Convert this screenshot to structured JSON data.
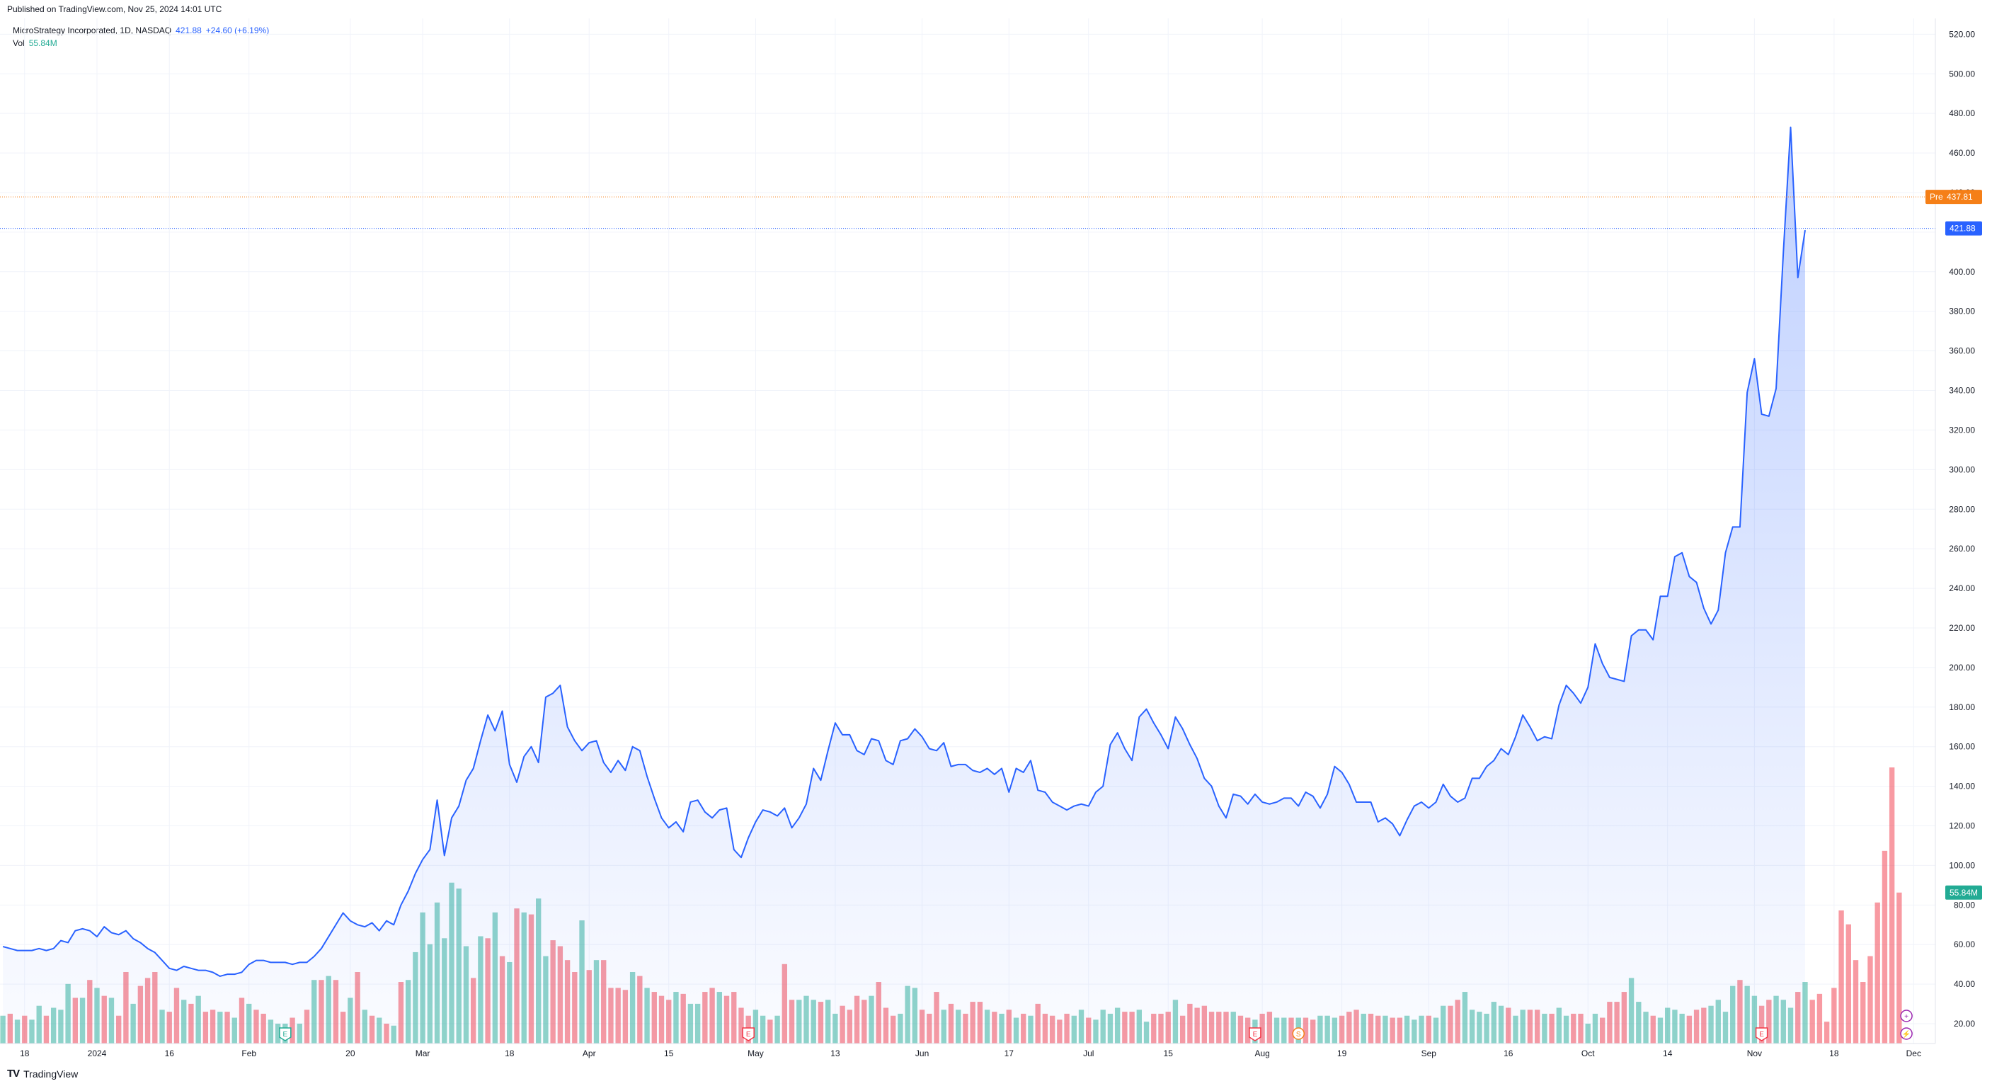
{
  "header": {
    "published_text": "Published on TradingView.com, Nov 25, 2024 14:01 UTC"
  },
  "legend": {
    "symbol": "MicroStrategy Incorporated, 1D, NASDAQ",
    "last_price": "421.88",
    "change": "+24.60 (+6.19%)",
    "volume_label": "Vol",
    "volume_value": "55.84M"
  },
  "price_tags": {
    "pre_label": "Pre",
    "pre_price": "437.81",
    "last_price": "421.88",
    "volume": "55.84M"
  },
  "footer": {
    "brand": "TradingView",
    "logo": "tradingview-logo-icon"
  },
  "colors": {
    "line": "#2962ff",
    "area_top": "#2962ff",
    "up_volume": "#22ab94",
    "down_volume": "#f23645",
    "pre_tag": "#f57f17",
    "last_tag": "#2962ff",
    "vol_tag": "#22ab94"
  },
  "chart_data": {
    "type": "area",
    "title": "",
    "xlabel": "",
    "ylabel": "",
    "ylim": [
      10,
      528
    ],
    "y_ticks": [
      "20.00",
      "40.00",
      "60.00",
      "80.00",
      "100.00",
      "120.00",
      "140.00",
      "160.00",
      "180.00",
      "200.00",
      "220.00",
      "240.00",
      "260.00",
      "280.00",
      "300.00",
      "320.00",
      "340.00",
      "360.00",
      "380.00",
      "400.00",
      "420.00",
      "440.00",
      "460.00",
      "480.00",
      "500.00",
      "520.00"
    ],
    "x_ticks": [
      "18",
      "2024",
      "16",
      "Feb",
      "20",
      "Mar",
      "18",
      "Apr",
      "15",
      "May",
      "13",
      "Jun",
      "17",
      "Jul",
      "15",
      "Aug",
      "19",
      "Sep",
      "16",
      "Oct",
      "14",
      "Nov",
      "18",
      "Dec"
    ],
    "x_tick_bars": [
      3,
      13,
      23,
      34,
      48,
      58,
      70,
      81,
      92,
      104,
      115,
      127,
      139,
      150,
      161,
      174,
      185,
      197,
      208,
      219,
      230,
      242,
      253,
      264
    ],
    "x_bar_range": [
      -0.4,
      267
    ],
    "series": [
      {
        "kind": "close",
        "values": [
          59,
          58,
          57,
          57,
          57,
          58,
          57,
          58,
          62,
          61,
          67,
          68,
          67,
          64,
          69,
          66,
          65,
          67,
          63,
          61,
          58,
          56,
          52,
          48,
          47,
          49,
          48,
          47,
          47,
          46,
          44,
          45,
          45,
          46,
          50,
          52,
          52,
          51,
          51,
          51,
          50,
          51,
          51,
          54,
          58,
          64,
          70,
          76,
          72,
          70,
          69,
          71,
          67,
          72,
          70,
          80,
          87,
          96,
          103,
          108,
          133,
          105,
          124,
          130,
          143,
          149,
          163,
          176,
          168,
          178,
          151,
          142,
          155,
          160,
          152,
          185,
          187,
          191,
          170,
          163,
          158,
          162,
          163,
          152,
          147,
          153,
          148,
          160,
          158,
          145,
          134,
          124,
          119,
          122,
          117,
          132,
          133,
          127,
          124,
          128,
          129,
          108,
          104,
          114,
          122,
          128,
          127,
          125,
          129,
          119,
          124,
          131,
          149,
          143,
          158,
          172,
          166,
          166,
          158,
          156,
          164,
          163,
          153,
          151,
          163,
          164,
          169,
          165,
          159,
          158,
          162,
          150,
          151,
          151,
          148,
          147,
          149,
          146,
          149,
          137,
          149,
          147,
          153,
          138,
          137,
          132,
          130,
          128,
          130,
          131,
          130,
          137,
          140,
          161,
          167,
          159,
          153,
          175,
          179,
          172,
          166,
          159,
          175,
          169,
          161,
          154,
          144,
          140,
          130,
          124,
          136,
          135,
          131,
          136,
          132,
          131,
          132,
          134,
          134,
          130,
          137,
          135,
          129,
          136,
          150,
          147,
          141,
          132,
          132,
          132,
          122,
          124,
          121,
          115,
          123,
          130,
          132,
          129,
          132,
          141,
          135,
          132,
          134,
          144,
          144,
          150,
          153,
          159,
          156,
          165,
          176,
          170,
          163,
          165,
          164,
          181,
          191,
          187,
          182,
          190,
          212,
          202,
          195,
          194,
          193,
          216,
          219,
          219,
          214,
          236,
          236,
          256,
          258,
          246,
          243,
          230,
          222,
          229,
          258,
          271,
          271,
          339,
          356,
          328,
          327,
          341,
          410,
          473,
          397,
          421
        ]
      },
      {
        "kind": "volume",
        "values": [
          14,
          15,
          12,
          14,
          12,
          19,
          14,
          18,
          17,
          30,
          23,
          23,
          32,
          28,
          24,
          23,
          14,
          36,
          20,
          29,
          33,
          36,
          17,
          16,
          28,
          22,
          20,
          24,
          16,
          17,
          16,
          16,
          13,
          23,
          20,
          17,
          15,
          12,
          10,
          10,
          13,
          10,
          17,
          32,
          32,
          34,
          32,
          16,
          23,
          36,
          17,
          14,
          13,
          10,
          9,
          31,
          32,
          46,
          66,
          50,
          71,
          53,
          81,
          78,
          49,
          33,
          54,
          53,
          66,
          44,
          41,
          68,
          66,
          65,
          73,
          44,
          52,
          49,
          42,
          36,
          62,
          37,
          42,
          42,
          28,
          28,
          27,
          36,
          34,
          28,
          26,
          24,
          22,
          26,
          25,
          20,
          20,
          26,
          28,
          26,
          24,
          26,
          18,
          14,
          17,
          14,
          12,
          14,
          40,
          22,
          22,
          24,
          22,
          21,
          22,
          15,
          19,
          17,
          24,
          22,
          24,
          31,
          18,
          14,
          15,
          29,
          28,
          17,
          15,
          26,
          17,
          20,
          17,
          15,
          21,
          21,
          17,
          16,
          15,
          17,
          13,
          15,
          14,
          20,
          15,
          14,
          12,
          15,
          14,
          17,
          13,
          12,
          17,
          15,
          18,
          16,
          16,
          17,
          11,
          15,
          15,
          16,
          22,
          14,
          20,
          18,
          19,
          16,
          16,
          16,
          16,
          14,
          13,
          12,
          15,
          16,
          13,
          13,
          13,
          13,
          13,
          12,
          14,
          14,
          13,
          14,
          16,
          17,
          15,
          15,
          14,
          14,
          13,
          13,
          14,
          12,
          14,
          14,
          13,
          19,
          19,
          22,
          26,
          17,
          16,
          15,
          21,
          19,
          18,
          14,
          17,
          17,
          17,
          15,
          15,
          18,
          14,
          15,
          15,
          10,
          15,
          13,
          21,
          21,
          26,
          33,
          21,
          16,
          14,
          13,
          18,
          17,
          15,
          14,
          17,
          18,
          19,
          22,
          16,
          29,
          32,
          29,
          24,
          19,
          22,
          24,
          22,
          18,
          26,
          31,
          22,
          25,
          11,
          28,
          67,
          60,
          42,
          31,
          44,
          71,
          97,
          139,
          76
        ],
        "up": [
          1,
          0,
          1,
          0,
          1,
          1,
          0,
          1,
          1,
          1,
          0,
          1,
          0,
          1,
          0,
          1,
          0,
          0,
          1,
          0,
          0,
          0,
          1,
          0,
          0,
          1,
          0,
          1,
          0,
          0,
          1,
          0,
          1,
          0,
          1,
          0,
          0,
          1,
          1,
          1,
          0,
          1,
          0,
          1,
          0,
          1,
          0,
          0,
          1,
          0,
          1,
          0,
          1,
          0,
          1,
          0,
          1,
          1,
          1,
          1,
          1,
          1,
          1,
          1,
          1,
          0,
          1,
          0,
          1,
          0,
          1,
          0,
          1,
          0,
          1,
          1,
          0,
          0,
          0,
          0,
          1,
          0,
          1,
          0,
          0,
          0,
          0,
          1,
          0,
          1,
          0,
          0,
          0,
          1,
          0,
          1,
          1,
          0,
          0,
          1,
          0,
          0,
          0,
          0,
          1,
          1,
          0,
          1,
          0,
          0,
          1,
          1,
          1,
          0,
          1,
          1,
          0,
          0,
          0,
          0,
          1,
          0,
          0,
          0,
          1,
          1,
          1,
          0,
          0,
          0,
          1,
          0,
          1,
          0,
          0,
          0,
          1,
          0,
          1,
          0,
          1,
          0,
          1,
          0,
          0,
          0,
          0,
          0,
          1,
          1,
          0,
          1,
          1,
          1,
          1,
          0,
          0,
          1,
          1,
          0,
          0,
          0,
          1,
          0,
          0,
          0,
          0,
          0,
          0,
          0,
          1,
          0,
          0,
          1,
          0,
          0,
          1,
          1,
          0,
          1,
          0,
          0,
          1,
          1,
          1,
          0,
          0,
          0,
          1,
          0,
          0,
          1,
          0,
          0,
          1,
          1,
          1,
          0,
          1,
          1,
          0,
          0,
          1,
          1,
          1,
          1,
          1,
          1,
          0,
          1,
          1,
          0,
          0,
          1,
          0,
          1,
          1,
          0,
          0,
          1,
          1,
          0,
          0,
          0,
          0,
          1,
          1,
          1,
          0,
          1,
          1,
          1,
          1,
          0,
          0,
          0,
          1,
          1,
          1,
          1,
          0,
          1,
          1,
          0,
          0,
          1,
          1,
          1,
          0,
          1
        ]
      }
    ],
    "reference_lines": [
      {
        "name": "Pre",
        "value": 437.81
      },
      {
        "name": "last",
        "value": 421.88
      }
    ],
    "grid": true,
    "legend_position": "top-left"
  }
}
